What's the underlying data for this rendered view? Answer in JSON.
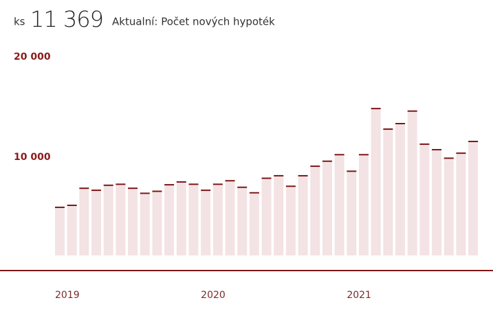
{
  "header": {
    "unit": "ks",
    "value": "11 369",
    "label": "Aktualní: Počet nových hypoték"
  },
  "chart_data": {
    "type": "bar",
    "categories": [
      "2019",
      null,
      null,
      null,
      null,
      null,
      null,
      null,
      null,
      null,
      null,
      null,
      "2020",
      null,
      null,
      null,
      null,
      null,
      null,
      null,
      null,
      null,
      null,
      null,
      "2021",
      null,
      null,
      null,
      null,
      null,
      null,
      null,
      null,
      null,
      null
    ],
    "values": [
      4800,
      5000,
      6700,
      6500,
      7000,
      7100,
      6700,
      6200,
      6400,
      7050,
      7330,
      7100,
      6500,
      7100,
      7450,
      6800,
      6250,
      7700,
      7950,
      6900,
      7950,
      8900,
      9400,
      10050,
      8400,
      10050,
      14650,
      12600,
      13150,
      14400,
      11100,
      10550,
      9700,
      10200,
      11369
    ],
    "color": "#f4e3e4",
    "cap_color": "#7b1717",
    "ylim": [
      0,
      20000
    ],
    "yticks": [
      {
        "value": 10000,
        "label": "10 000"
      },
      {
        "value": 20000,
        "label": "20 000"
      }
    ],
    "grid": false
  }
}
